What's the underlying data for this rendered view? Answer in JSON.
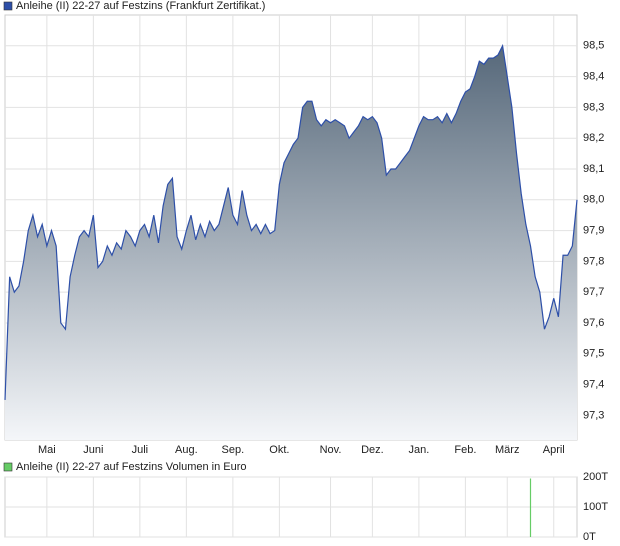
{
  "chart_data": [
    {
      "type": "area",
      "categories": [
        null,
        null,
        null,
        null,
        null,
        null,
        null,
        null,
        null,
        "Mai",
        null,
        null,
        null,
        null,
        null,
        null,
        null,
        null,
        null,
        "Juni",
        null,
        null,
        null,
        null,
        null,
        null,
        null,
        null,
        null,
        "Juli",
        null,
        null,
        null,
        null,
        null,
        null,
        null,
        null,
        null,
        "Aug.",
        null,
        null,
        null,
        null,
        null,
        null,
        null,
        null,
        null,
        "Sep.",
        null,
        null,
        null,
        null,
        null,
        null,
        null,
        null,
        null,
        "Okt.",
        null,
        null,
        null,
        null,
        null,
        null,
        null,
        null,
        null,
        null,
        "Nov.",
        null,
        null,
        null,
        null,
        null,
        null,
        null,
        null,
        "Dez.",
        null,
        null,
        null,
        null,
        null,
        null,
        null,
        null,
        null,
        "Jan.",
        null,
        null,
        null,
        null,
        null,
        null,
        null,
        null,
        null,
        "Feb.",
        null,
        null,
        null,
        null,
        null,
        null,
        null,
        null,
        "März",
        null,
        null,
        null,
        null,
        null,
        null,
        null,
        null,
        null,
        "April",
        null,
        null,
        null,
        null,
        null
      ],
      "series": [
        {
          "name": "Anleihe (II) 22-27 auf Festzins (Frankfurt Zertifikat.)",
          "color": "#2d4fa8",
          "values": [
            97.35,
            97.75,
            97.7,
            97.72,
            97.8,
            97.9,
            97.95,
            97.88,
            97.92,
            97.85,
            97.9,
            97.85,
            97.6,
            97.58,
            97.75,
            97.82,
            97.88,
            97.9,
            97.88,
            97.95,
            97.78,
            97.8,
            97.85,
            97.82,
            97.86,
            97.84,
            97.9,
            97.88,
            97.85,
            97.9,
            97.92,
            97.88,
            97.95,
            97.86,
            97.98,
            98.05,
            98.07,
            97.88,
            97.84,
            97.9,
            97.95,
            97.87,
            97.92,
            97.88,
            97.93,
            97.9,
            97.92,
            97.98,
            98.04,
            97.95,
            97.92,
            98.03,
            97.95,
            97.9,
            97.92,
            97.89,
            97.92,
            97.89,
            97.9,
            98.05,
            98.12,
            98.15,
            98.18,
            98.2,
            98.3,
            98.32,
            98.32,
            98.26,
            98.24,
            98.26,
            98.25,
            98.26,
            98.25,
            98.24,
            98.2,
            98.22,
            98.24,
            98.27,
            98.26,
            98.27,
            98.25,
            98.2,
            98.08,
            98.1,
            98.1,
            98.12,
            98.14,
            98.16,
            98.2,
            98.24,
            98.27,
            98.26,
            98.26,
            98.27,
            98.25,
            98.28,
            98.25,
            98.28,
            98.32,
            98.35,
            98.36,
            98.4,
            98.45,
            98.44,
            98.46,
            98.46,
            98.47,
            98.5,
            98.4,
            98.3,
            98.15,
            98.02,
            97.92,
            97.85,
            97.75,
            97.7,
            97.58,
            97.62,
            97.68,
            97.62,
            97.82,
            97.82,
            97.85,
            98.0
          ]
        }
      ],
      "ylim": [
        97.22,
        98.6
      ],
      "yticks": [
        {
          "value": 97.3,
          "label": "97,3"
        },
        {
          "value": 97.4,
          "label": "97,4"
        },
        {
          "value": 97.5,
          "label": "97,5"
        },
        {
          "value": 97.6,
          "label": "97,6"
        },
        {
          "value": 97.7,
          "label": "97,7"
        },
        {
          "value": 97.8,
          "label": "97,8"
        },
        {
          "value": 97.9,
          "label": "97,9"
        },
        {
          "value": 98.0,
          "label": "98,0"
        },
        {
          "value": 98.1,
          "label": "98,1"
        },
        {
          "value": 98.2,
          "label": "98,2"
        },
        {
          "value": 98.3,
          "label": "98,3"
        },
        {
          "value": 98.4,
          "label": "98,4"
        },
        {
          "value": 98.5,
          "label": "98,5"
        }
      ],
      "grid": true
    },
    {
      "type": "bar",
      "series": [
        {
          "name": "Anleihe (II) 22-27 auf Festzins Volumen in Euro",
          "color": "#66cc66",
          "values": [
            0,
            0,
            0,
            0,
            0,
            0,
            0,
            0,
            0,
            0,
            0,
            0,
            0,
            0,
            0,
            0,
            0,
            0,
            0,
            0,
            0,
            0,
            0,
            0,
            0,
            0,
            0,
            0,
            0,
            0,
            0,
            0,
            0,
            0,
            0,
            0,
            0,
            0,
            0,
            0,
            0,
            0,
            0,
            0,
            0,
            0,
            0,
            0,
            0,
            0,
            0,
            0,
            0,
            0,
            0,
            0,
            0,
            0,
            0,
            0,
            0,
            0,
            0,
            0,
            0,
            0,
            0,
            0,
            0,
            0,
            0,
            0,
            0,
            0,
            0,
            0,
            0,
            0,
            0,
            0,
            0,
            0,
            0,
            0,
            0,
            0,
            0,
            0,
            0,
            0,
            0,
            0,
            0,
            0,
            0,
            0,
            0,
            0,
            0,
            0,
            0,
            0,
            0,
            0,
            0,
            0,
            0,
            0,
            0,
            0,
            0,
            0,
            0,
            195000,
            0,
            0,
            0,
            0,
            0,
            0,
            0,
            0,
            0,
            0
          ]
        }
      ],
      "ylim": [
        0,
        200000
      ],
      "yticks": [
        {
          "value": 0,
          "label": "0T"
        },
        {
          "value": 100000,
          "label": "100T"
        },
        {
          "value": 200000,
          "label": "200T"
        }
      ],
      "grid": true
    }
  ]
}
